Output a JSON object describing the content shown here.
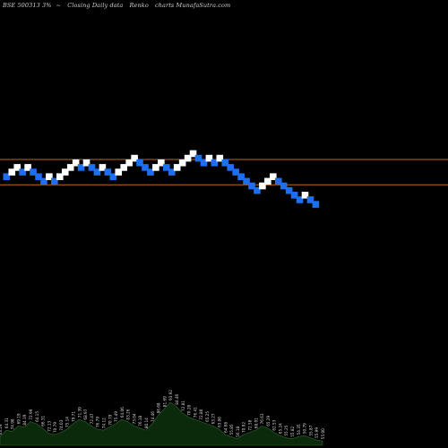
{
  "header": {
    "symbol": "BSE 500313 3%",
    "suffix": "~",
    "description": "Closing Daily data",
    "chart_name": "Renko",
    "site": "charts MunafaSutra.com"
  },
  "chart_data": [
    {
      "type": "renko",
      "title": "Renko chart",
      "bricks": [
        {
          "level": 4,
          "dir": "down"
        },
        {
          "level": 5,
          "dir": "up"
        },
        {
          "level": 6,
          "dir": "up"
        },
        {
          "level": 5,
          "dir": "down"
        },
        {
          "level": 6,
          "dir": "up"
        },
        {
          "level": 5,
          "dir": "down"
        },
        {
          "level": 4,
          "dir": "down"
        },
        {
          "level": 3,
          "dir": "down"
        },
        {
          "level": 4,
          "dir": "up"
        },
        {
          "level": 3,
          "dir": "down"
        },
        {
          "level": 4,
          "dir": "up"
        },
        {
          "level": 5,
          "dir": "up"
        },
        {
          "level": 6,
          "dir": "up"
        },
        {
          "level": 7,
          "dir": "up"
        },
        {
          "level": 6,
          "dir": "down"
        },
        {
          "level": 7,
          "dir": "up"
        },
        {
          "level": 6,
          "dir": "down"
        },
        {
          "level": 5,
          "dir": "down"
        },
        {
          "level": 6,
          "dir": "up"
        },
        {
          "level": 5,
          "dir": "down"
        },
        {
          "level": 4,
          "dir": "down"
        },
        {
          "level": 5,
          "dir": "up"
        },
        {
          "level": 6,
          "dir": "up"
        },
        {
          "level": 7,
          "dir": "up"
        },
        {
          "level": 8,
          "dir": "up"
        },
        {
          "level": 7,
          "dir": "down"
        },
        {
          "level": 6,
          "dir": "down"
        },
        {
          "level": 5,
          "dir": "down"
        },
        {
          "level": 6,
          "dir": "up"
        },
        {
          "level": 7,
          "dir": "up"
        },
        {
          "level": 6,
          "dir": "down"
        },
        {
          "level": 5,
          "dir": "down"
        },
        {
          "level": 6,
          "dir": "up"
        },
        {
          "level": 7,
          "dir": "up"
        },
        {
          "level": 8,
          "dir": "up"
        },
        {
          "level": 9,
          "dir": "up"
        },
        {
          "level": 8,
          "dir": "down"
        },
        {
          "level": 7,
          "dir": "down"
        },
        {
          "level": 8,
          "dir": "up"
        },
        {
          "level": 7,
          "dir": "down"
        },
        {
          "level": 8,
          "dir": "up"
        },
        {
          "level": 7,
          "dir": "down"
        },
        {
          "level": 6,
          "dir": "down"
        },
        {
          "level": 5,
          "dir": "down"
        },
        {
          "level": 4,
          "dir": "down"
        },
        {
          "level": 3,
          "dir": "down"
        },
        {
          "level": 2,
          "dir": "down"
        },
        {
          "level": 1,
          "dir": "down"
        },
        {
          "level": 2,
          "dir": "up"
        },
        {
          "level": 3,
          "dir": "up"
        },
        {
          "level": 4,
          "dir": "up"
        },
        {
          "level": 3,
          "dir": "down"
        },
        {
          "level": 2,
          "dir": "down"
        },
        {
          "level": 1,
          "dir": "down"
        },
        {
          "level": 0,
          "dir": "down"
        },
        {
          "level": -1,
          "dir": "down"
        },
        {
          "level": 0,
          "dir": "up"
        },
        {
          "level": -1,
          "dir": "down"
        },
        {
          "level": -2,
          "dir": "down"
        }
      ],
      "reference_lines_levels": [
        7,
        1.5
      ],
      "colors": {
        "background": "#000000",
        "up_brick": "#ffffff",
        "down_brick": "#1e6ff0",
        "reference_line": "#c06a1c",
        "volume_fill": "#0b2a0b",
        "volume_stroke": "#2f6a2f",
        "label_text": "#d8d8d8"
      }
    },
    {
      "type": "area",
      "title": "Volume",
      "values": [
        8,
        14,
        13,
        18,
        17,
        22,
        20,
        16,
        11,
        10,
        12,
        15,
        20,
        24,
        22,
        18,
        15,
        14,
        17,
        20,
        24,
        22,
        18,
        16,
        14,
        20,
        28,
        34,
        40,
        36,
        30,
        26,
        24,
        22,
        20,
        18,
        15,
        10,
        8,
        6,
        10,
        12,
        14,
        18,
        16,
        12,
        9,
        7,
        6,
        8,
        9,
        7,
        5,
        4
      ],
      "labels": [
        "63.29",
        "64.31",
        "74.98",
        "69.19",
        "84.19",
        "72.99",
        "64.15",
        "66.31",
        "72.13",
        "70.79",
        "74.03",
        "75.14",
        "79.71",
        "71.39",
        "68.97",
        "72.47",
        "76.79",
        "74.12",
        "70.79",
        "75.49",
        "64.06",
        "83.26",
        "73.04",
        "76.18",
        "80.14",
        "74.46",
        "86.68",
        "81.69",
        "93.92",
        "84.46",
        "72.81",
        "70.28",
        "76.41",
        "72.80",
        "65.25",
        "63.27",
        "63.06",
        "64.68",
        "55.85",
        "56.18",
        "70.92",
        "72.58",
        "68.91",
        "76.63",
        "65.29",
        "62.53",
        "65.24",
        "55.25",
        "55.82",
        "54.35",
        "50.79",
        "55.87",
        "55.99",
        "55.00"
      ]
    }
  ]
}
